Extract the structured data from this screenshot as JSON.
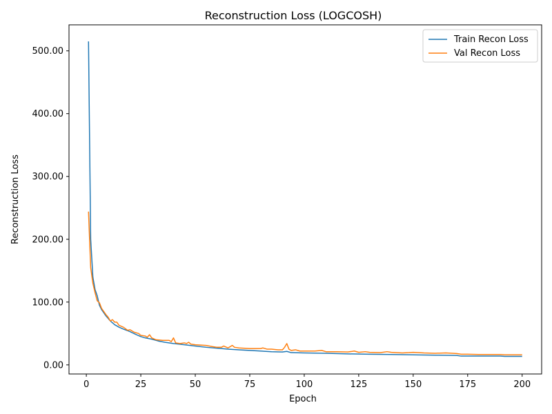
{
  "chart_data": {
    "type": "line",
    "title": "Reconstruction Loss (LOGCOSH)",
    "xlabel": "Epoch",
    "ylabel": "Reconstruction Loss",
    "xlim": [
      -7.95,
      208.95
    ],
    "ylim": [
      -14.5,
      541.4
    ],
    "xticks": [
      0,
      25,
      50,
      75,
      100,
      125,
      150,
      175,
      200
    ],
    "yticks": [
      0,
      100,
      200,
      300,
      400,
      500
    ],
    "ytick_labels": [
      "0.00",
      "100.00",
      "200.00",
      "300.00",
      "400.00",
      "500.00"
    ],
    "grid": false,
    "legend_position": "top-right",
    "series": [
      {
        "name": "Train Recon Loss",
        "color": "#1f77b4",
        "points": [
          [
            1,
            515
          ],
          [
            2,
            200
          ],
          [
            3,
            140
          ],
          [
            4,
            120
          ],
          [
            5,
            110
          ],
          [
            6,
            95
          ],
          [
            7,
            88
          ],
          [
            8,
            83
          ],
          [
            9,
            78
          ],
          [
            10,
            74
          ],
          [
            11,
            70
          ],
          [
            12,
            67
          ],
          [
            13,
            64
          ],
          [
            15,
            60
          ],
          [
            17,
            57
          ],
          [
            20,
            53
          ],
          [
            23,
            48
          ],
          [
            25,
            45
          ],
          [
            27,
            43
          ],
          [
            30,
            41
          ],
          [
            33,
            38
          ],
          [
            36,
            36
          ],
          [
            40,
            34
          ],
          [
            45,
            32
          ],
          [
            50,
            30
          ],
          [
            55,
            28
          ],
          [
            60,
            26.5
          ],
          [
            65,
            25
          ],
          [
            70,
            24
          ],
          [
            75,
            23
          ],
          [
            80,
            22
          ],
          [
            85,
            21
          ],
          [
            90,
            20.5
          ],
          [
            92,
            21.5
          ],
          [
            94,
            19.5
          ],
          [
            100,
            19
          ],
          [
            110,
            18.5
          ],
          [
            120,
            17.5
          ],
          [
            130,
            17
          ],
          [
            140,
            16.5
          ],
          [
            150,
            16
          ],
          [
            160,
            15.5
          ],
          [
            170,
            15
          ],
          [
            172,
            14
          ],
          [
            180,
            14
          ],
          [
            190,
            14
          ],
          [
            192,
            13.5
          ],
          [
            200,
            13.5
          ]
        ]
      },
      {
        "name": "Val Recon Loss",
        "color": "#ff7f0e",
        "points": [
          [
            1,
            244
          ],
          [
            2,
            155
          ],
          [
            3,
            130
          ],
          [
            4,
            115
          ],
          [
            5,
            102
          ],
          [
            6,
            99
          ],
          [
            7,
            90
          ],
          [
            8,
            85
          ],
          [
            9,
            80
          ],
          [
            10,
            76
          ],
          [
            11,
            70
          ],
          [
            12,
            72
          ],
          [
            13,
            68
          ],
          [
            14,
            68
          ],
          [
            15,
            63
          ],
          [
            17,
            60
          ],
          [
            19,
            55
          ],
          [
            20,
            56
          ],
          [
            22,
            52
          ],
          [
            24,
            50
          ],
          [
            25,
            47
          ],
          [
            27,
            46
          ],
          [
            28,
            44
          ],
          [
            29,
            48
          ],
          [
            30,
            43
          ],
          [
            32,
            40
          ],
          [
            35,
            39
          ],
          [
            38,
            39
          ],
          [
            39,
            37
          ],
          [
            40,
            43
          ],
          [
            41,
            35
          ],
          [
            43,
            34
          ],
          [
            45,
            35
          ],
          [
            46,
            34
          ],
          [
            47,
            36
          ],
          [
            48,
            33
          ],
          [
            50,
            32
          ],
          [
            55,
            31
          ],
          [
            58,
            29
          ],
          [
            60,
            28
          ],
          [
            62,
            28
          ],
          [
            63,
            30
          ],
          [
            65,
            27
          ],
          [
            67,
            31
          ],
          [
            68,
            28
          ],
          [
            70,
            27
          ],
          [
            75,
            26
          ],
          [
            80,
            26
          ],
          [
            81,
            27
          ],
          [
            83,
            25
          ],
          [
            85,
            25
          ],
          [
            88,
            24
          ],
          [
            90,
            24
          ],
          [
            91,
            28
          ],
          [
            92,
            34
          ],
          [
            93,
            25
          ],
          [
            94,
            23
          ],
          [
            96,
            24
          ],
          [
            98,
            22
          ],
          [
            100,
            22
          ],
          [
            105,
            22
          ],
          [
            108,
            23
          ],
          [
            110,
            21
          ],
          [
            115,
            21
          ],
          [
            120,
            20.5
          ],
          [
            123,
            22
          ],
          [
            125,
            20
          ],
          [
            128,
            21
          ],
          [
            130,
            20
          ],
          [
            135,
            19.5
          ],
          [
            138,
            21
          ],
          [
            140,
            20
          ],
          [
            145,
            19
          ],
          [
            148,
            19.5
          ],
          [
            150,
            20
          ],
          [
            155,
            19
          ],
          [
            160,
            18.5
          ],
          [
            165,
            19
          ],
          [
            168,
            18.5
          ],
          [
            170,
            18
          ],
          [
            172,
            17
          ],
          [
            175,
            17
          ],
          [
            180,
            16.5
          ],
          [
            190,
            16.5
          ],
          [
            192,
            16
          ],
          [
            200,
            16
          ]
        ]
      }
    ]
  }
}
